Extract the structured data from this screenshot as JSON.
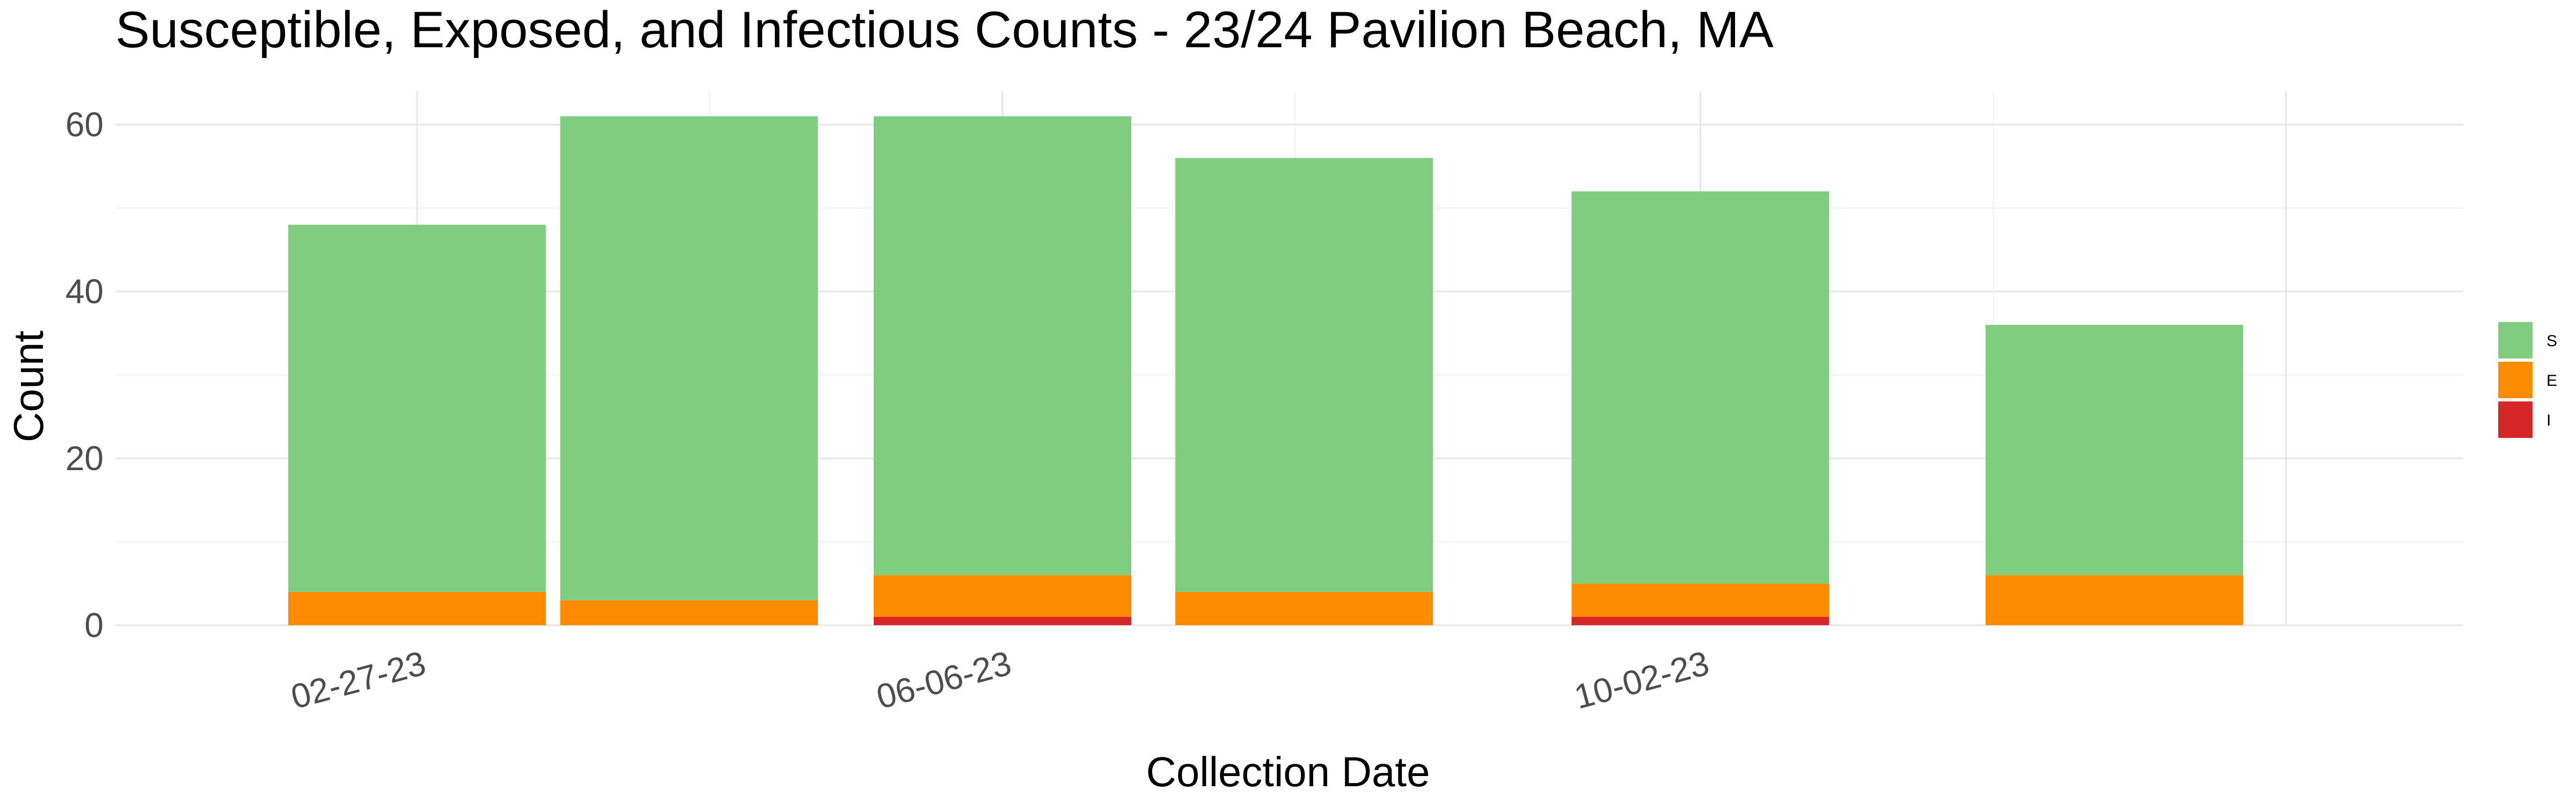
{
  "chart_data": {
    "type": "bar",
    "stacked": true,
    "title": "Susceptible, Exposed, and Infectious Counts - 23/24  Pavilion Beach, MA",
    "xlabel": "Collection Date",
    "ylabel": "Count",
    "ylim": [
      0,
      64
    ],
    "y_ticks": [
      0,
      20,
      40,
      60
    ],
    "x_tick_labels": [
      "02-27-23",
      "06-06-23",
      "10-02-23"
    ],
    "x_tick_dates": [
      "2023-02-27",
      "2023-06-06",
      "2023-10-02"
    ],
    "xlim": [
      "2023-01-07",
      "2024-02-08"
    ],
    "dates": [
      "2023-02-27",
      "2023-04-14",
      "2023-06-06",
      "2023-07-27",
      "2023-10-02",
      "2023-12-11"
    ],
    "series": [
      {
        "name": "I",
        "color": "#d62728",
        "values": [
          0,
          0,
          1,
          0,
          1,
          0
        ]
      },
      {
        "name": "E",
        "color": "#ff8c00",
        "values": [
          4,
          3,
          5,
          4,
          4,
          6
        ]
      },
      {
        "name": "S",
        "color": "#7fce7f",
        "values": [
          44,
          58,
          55,
          52,
          47,
          30
        ]
      }
    ],
    "legend": {
      "position": "right",
      "order": [
        "S",
        "E",
        "I"
      ]
    },
    "grid": true
  }
}
